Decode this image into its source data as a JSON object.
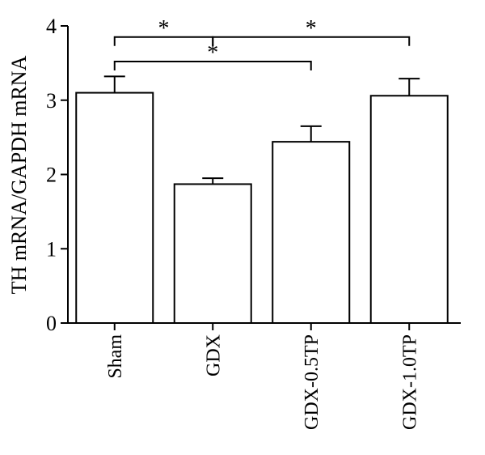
{
  "chart_data": {
    "type": "bar",
    "title": "",
    "xlabel": "",
    "ylabel": "TH mRNA/GAPDH mRNA",
    "ylim": [
      0,
      4
    ],
    "yticks": [
      0,
      1,
      2,
      3,
      4
    ],
    "grid": false,
    "legend": "none",
    "categories": [
      "Sham",
      "GDX",
      "GDX-0.5TP",
      "GDX-1.0TP"
    ],
    "values": [
      3.1,
      1.87,
      2.44,
      3.06
    ],
    "errors": [
      0.22,
      0.08,
      0.21,
      0.23
    ],
    "significance": [
      {
        "from": 0,
        "to": 1,
        "label": "*",
        "level": 3.85
      },
      {
        "from": 1,
        "to": 3,
        "label": "*",
        "level": 3.85
      },
      {
        "from": 0,
        "to": 2,
        "label": "*",
        "level": 3.52
      }
    ],
    "bar_fill": "#ffffff",
    "bar_stroke": "#000000"
  }
}
